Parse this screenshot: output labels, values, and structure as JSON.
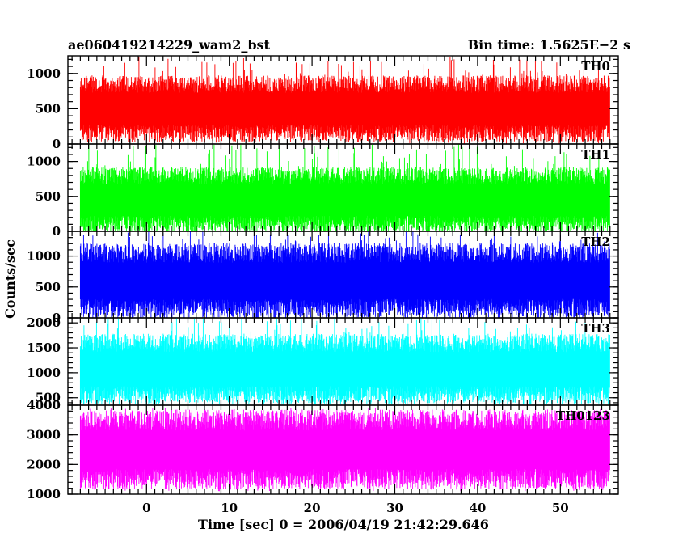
{
  "header": {
    "left_title": "ae060419214229_wam2_bst",
    "right_title": "Bin time: 1.5625E−2 s"
  },
  "chart_data": {
    "type": "line",
    "xlabel": "Time [sec] 0 = 2006/04/19 21:42:29.646",
    "ylabel": "Counts/sec",
    "xlim": [
      -9.5,
      57
    ],
    "data_x_range": [
      -8.0,
      56.0
    ],
    "xticks": [
      0,
      10,
      20,
      30,
      40,
      50
    ],
    "series": [
      {
        "name": "TH0",
        "color": "#ff0000",
        "ylim": [
          0,
          1250
        ],
        "yticks": [
          0,
          500,
          1000
        ],
        "range_min": 0,
        "range_max": 1250,
        "typical_low": 150,
        "typical_high": 850
      },
      {
        "name": "TH1",
        "color": "#00ff00",
        "ylim": [
          0,
          1250
        ],
        "yticks": [
          0,
          500,
          1000
        ],
        "range_min": 0,
        "range_max": 1250,
        "typical_low": 100,
        "typical_high": 800
      },
      {
        "name": "TH2",
        "color": "#0000ff",
        "ylim": [
          0,
          1400
        ],
        "yticks": [
          0,
          500,
          1000
        ],
        "range_min": 0,
        "range_max": 1400,
        "typical_low": 150,
        "typical_high": 1050
      },
      {
        "name": "TH3",
        "color": "#00ffff",
        "ylim": [
          350,
          2100
        ],
        "yticks": [
          500,
          1000,
          1500,
          2000
        ],
        "range_min": 400,
        "range_max": 2100,
        "typical_low": 550,
        "typical_high": 1600
      },
      {
        "name": "TH0123",
        "color": "#ff00ff",
        "ylim": [
          1000,
          4000
        ],
        "yticks": [
          1000,
          2000,
          3000,
          4000
        ],
        "range_min": 1100,
        "range_max": 3900,
        "typical_low": 1500,
        "typical_high": 3500
      }
    ]
  }
}
